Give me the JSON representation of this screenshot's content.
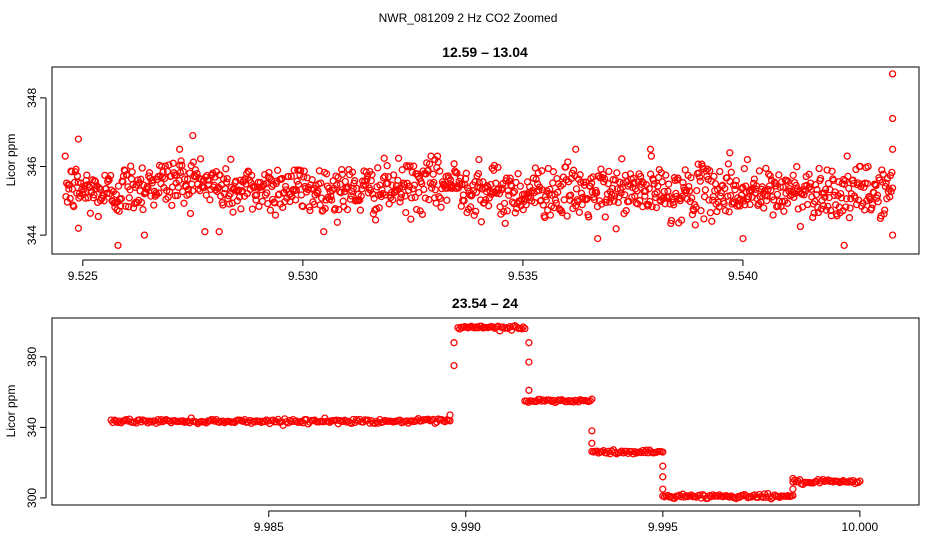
{
  "figure": {
    "suptitle": "NWR_081209  2 Hz CO2 Zoomed"
  },
  "colors": {
    "points": "#ff0000",
    "axes": "#000000",
    "background": "#ffffff"
  },
  "chart_data": [
    {
      "type": "scatter",
      "title": "12.59 – 13.04",
      "xlabel": "",
      "ylabel": "Licor ppm",
      "xlim": [
        9.5243,
        9.544
      ],
      "ylim": [
        343.45,
        348.9
      ],
      "xticks": [
        9.525,
        9.53,
        9.535,
        9.54
      ],
      "xtick_labels": [
        "9.525",
        "9.530",
        "9.535",
        "9.540"
      ],
      "yticks": [
        344,
        346,
        348
      ],
      "ytick_labels": [
        "344",
        "346",
        "348"
      ],
      "grid": false,
      "legend": "none",
      "series": [
        {
          "x": [
            9.5246,
            9.5255,
            9.5265,
            9.5275,
            9.5285,
            9.5295,
            9.5305,
            9.5315,
            9.5325,
            9.5335,
            9.5345,
            9.5355,
            9.5365,
            9.5375,
            9.5385,
            9.5395,
            9.5405,
            9.5415,
            9.5425,
            9.5434
          ],
          "y": [
            345.4,
            345.2,
            345.5,
            345.6,
            345.3,
            345.4,
            345.3,
            345.3,
            345.4,
            345.5,
            345.2,
            345.3,
            345.2,
            345.3,
            345.2,
            345.3,
            345.2,
            345.3,
            345.2,
            345.3
          ],
          "spread": 0.5,
          "n": 1150,
          "outliers": [
            {
              "x": 9.5249,
              "y": 346.8
            },
            {
              "x": 9.5258,
              "y": 343.7
            },
            {
              "x": 9.5272,
              "y": 346.5
            },
            {
              "x": 9.5275,
              "y": 346.9
            },
            {
              "x": 9.5249,
              "y": 344.2
            },
            {
              "x": 9.5264,
              "y": 344.0
            },
            {
              "x": 9.5281,
              "y": 344.1
            },
            {
              "x": 9.5362,
              "y": 346.5
            },
            {
              "x": 9.5367,
              "y": 343.9
            },
            {
              "x": 9.5379,
              "y": 346.5
            },
            {
              "x": 9.5397,
              "y": 346.4
            },
            {
              "x": 9.54,
              "y": 343.9
            },
            {
              "x": 9.5401,
              "y": 346.2
            },
            {
              "x": 9.5423,
              "y": 343.7
            },
            {
              "x": 9.5434,
              "y": 348.7
            },
            {
              "x": 9.5434,
              "y": 347.4
            },
            {
              "x": 9.5434,
              "y": 346.5
            },
            {
              "x": 9.5434,
              "y": 344.0
            },
            {
              "x": 9.533,
              "y": 346.2
            },
            {
              "x": 9.534,
              "y": 346.2
            }
          ]
        }
      ]
    },
    {
      "type": "scatter",
      "title": "23.54 – 24",
      "xlabel": "",
      "ylabel": "Licor ppm",
      "xlim": [
        9.9795,
        10.0015
      ],
      "ylim": [
        296,
        402
      ],
      "xticks": [
        9.985,
        9.99,
        9.995,
        10.0
      ],
      "xtick_labels": [
        "9.985",
        "9.990",
        "9.995",
        "10.000"
      ],
      "yticks": [
        300,
        340,
        380
      ],
      "ytick_labels": [
        "300",
        "340",
        "380"
      ],
      "grid": false,
      "legend": "none",
      "series": [
        {
          "segments": [
            {
              "x0": 9.981,
              "x1": 9.9896,
              "y": 343.5
            },
            {
              "x0": 9.9898,
              "x1": 9.9915,
              "y": 396.5
            },
            {
              "x0": 9.9915,
              "x1": 9.9932,
              "y": 355.0
            },
            {
              "x0": 9.9932,
              "x1": 9.995,
              "y": 326.0
            },
            {
              "x0": 9.995,
              "x1": 9.9983,
              "y": 301.0
            },
            {
              "x0": 9.9983,
              "x1": 10.0,
              "y": 309.0
            }
          ],
          "transitions": [
            {
              "x": 9.9896,
              "y": 347.0
            },
            {
              "x": 9.9897,
              "y": 375.0
            },
            {
              "x": 9.9897,
              "y": 388.0
            },
            {
              "x": 9.9916,
              "y": 388.0
            },
            {
              "x": 9.9916,
              "y": 377.0
            },
            {
              "x": 9.9916,
              "y": 361.0
            },
            {
              "x": 9.9932,
              "x2": 0,
              "y": 338.0
            },
            {
              "x": 9.9932,
              "y": 331.0
            },
            {
              "x": 9.995,
              "y": 318.0
            },
            {
              "x": 9.995,
              "y": 312.0
            },
            {
              "x": 9.995,
              "y": 305.0
            },
            {
              "x": 9.9983,
              "y": 305.0
            },
            {
              "x": 9.9983,
              "y": 311.0
            }
          ]
        }
      ]
    }
  ]
}
